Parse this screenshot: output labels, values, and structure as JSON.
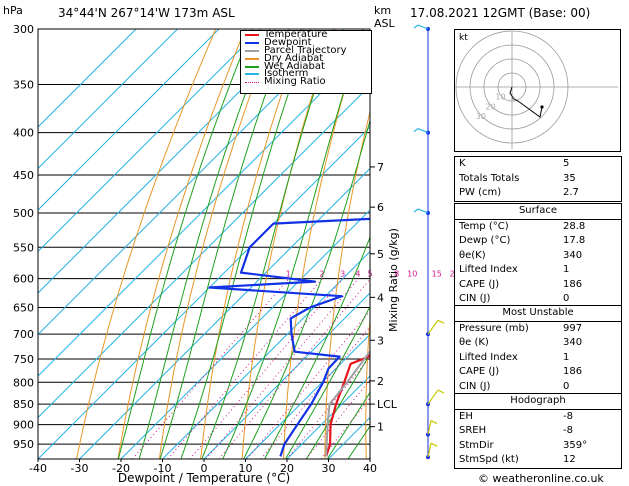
{
  "header": {
    "pressure_unit": "hPa",
    "location": "34°44'N  267°14'W  173m  ASL",
    "height_unit_top": "km",
    "height_unit_bottom": "ASL",
    "datetime": "17.08.2021  12GMT  (Base: 00)"
  },
  "footer": {
    "copyright": "© weatheronline.co.uk"
  },
  "chart_data": {
    "type": "line",
    "subtype": "skew-T log-P diagram",
    "xlabel": "Dewpoint / Temperature (°C)",
    "ylabel_right": "Mixing Ratio (g/kg)",
    "temp_ticks": [
      -40,
      -30,
      -20,
      -10,
      0,
      10,
      20,
      30,
      40
    ],
    "pressure_ticks": [
      300,
      350,
      400,
      450,
      500,
      550,
      600,
      650,
      700,
      750,
      800,
      850,
      900,
      950
    ],
    "pressure_range": [
      300,
      990
    ],
    "height_ticks": [
      {
        "label": "7",
        "p": 440
      },
      {
        "label": "6",
        "p": 492
      },
      {
        "label": "5",
        "p": 560
      },
      {
        "label": "4",
        "p": 632
      },
      {
        "label": "3",
        "p": 712
      },
      {
        "label": "2",
        "p": 797
      },
      {
        "label": "LCL",
        "p": 850
      },
      {
        "label": "1",
        "p": 905
      }
    ],
    "mixing_ratio_labels": [
      "1",
      "2",
      "3",
      "4",
      "5",
      "8",
      "10",
      "15",
      "20",
      "25"
    ],
    "legend": [
      {
        "name": "Temperature",
        "color": "#e8141e",
        "style": "solid"
      },
      {
        "name": "Dewpoint",
        "color": "#1232e6",
        "style": "solid"
      },
      {
        "name": "Parcel Trajectory",
        "color": "#a0a0a0",
        "style": "solid"
      },
      {
        "name": "Dry Adiabat",
        "color": "#e89628",
        "style": "solid"
      },
      {
        "name": "Wet Adiabat",
        "color": "#1ea01e",
        "style": "solid"
      },
      {
        "name": "Isotherm",
        "color": "#28b4e6",
        "style": "solid"
      },
      {
        "name": "Mixing Ratio",
        "color": "#d2148c",
        "style": "dotted"
      }
    ],
    "series": [
      {
        "name": "Temperature",
        "color": "#e8141e",
        "points": [
          [
            983,
            28.8
          ],
          [
            950,
            26.8
          ],
          [
            900,
            22.2
          ],
          [
            850,
            18.6
          ],
          [
            800,
            15.3
          ],
          [
            760,
            12.4
          ],
          [
            745,
            15.0
          ],
          [
            700,
            13.2
          ],
          [
            650,
            10.2
          ],
          [
            620,
            8.0
          ],
          [
            600,
            6.8
          ],
          [
            550,
            1.2
          ],
          [
            500,
            -3.6
          ],
          [
            450,
            -9.6
          ],
          [
            400,
            -17.2
          ],
          [
            350,
            -25.5
          ],
          [
            300,
            -34.8
          ]
        ]
      },
      {
        "name": "Dewpoint",
        "color": "#1232e6",
        "points": [
          [
            983,
            17.8
          ],
          [
            950,
            15.8
          ],
          [
            900,
            14.2
          ],
          [
            850,
            12.6
          ],
          [
            800,
            10.2
          ],
          [
            770,
            8.2
          ],
          [
            745,
            8.0
          ],
          [
            735,
            -4.0
          ],
          [
            700,
            -9.0
          ],
          [
            670,
            -13.0
          ],
          [
            650,
            -11.0
          ],
          [
            630,
            -6.0
          ],
          [
            615,
            -40.0
          ],
          [
            605,
            -16.0
          ],
          [
            590,
            -36.0
          ],
          [
            550,
            -40.0
          ],
          [
            515,
            -40.0
          ],
          [
            505,
            -7.0
          ],
          [
            450,
            -4.0
          ],
          [
            400,
            -9.0
          ],
          [
            350,
            -22.0
          ],
          [
            300,
            -39.0
          ]
        ]
      },
      {
        "name": "Parcel Trajectory",
        "color": "#a0a0a0",
        "points": [
          [
            983,
            28.8
          ],
          [
            900,
            21.5
          ],
          [
            850,
            17.0
          ],
          [
            800,
            16.0
          ],
          [
            700,
            13.0
          ],
          [
            600,
            8.5
          ],
          [
            500,
            1.0
          ],
          [
            400,
            -11.0
          ],
          [
            350,
            -19.0
          ],
          [
            300,
            -29.0
          ]
        ]
      }
    ],
    "wind_barbs": [
      {
        "p": 985,
        "dir": "N",
        "speed_kt": 5
      },
      {
        "p": 925,
        "dir": "N",
        "speed_kt": 10
      },
      {
        "p": 850,
        "dir": "NE",
        "speed_kt": 10
      },
      {
        "p": 700,
        "dir": "NE",
        "speed_kt": 10
      },
      {
        "p": 500,
        "dir": "W",
        "speed_kt": 15
      },
      {
        "p": 400,
        "dir": "W",
        "speed_kt": 15
      },
      {
        "p": 300,
        "dir": "W",
        "speed_kt": 15
      }
    ]
  },
  "hodograph": {
    "unit": "kt",
    "ring_labels": [
      "10",
      "20",
      "30"
    ]
  },
  "indices": [
    {
      "key": "K",
      "value": "5"
    },
    {
      "key": "Totals Totals",
      "value": "35"
    },
    {
      "key": "PW (cm)",
      "value": "2.7"
    }
  ],
  "surface": {
    "title": "Surface",
    "rows": [
      {
        "key": "Temp (°C)",
        "value": "28.8"
      },
      {
        "key": "Dewp (°C)",
        "value": "17.8"
      },
      {
        "key": "θe(K)",
        "value": "340"
      },
      {
        "key": "Lifted Index",
        "value": "1"
      },
      {
        "key": "CAPE (J)",
        "value": "186"
      },
      {
        "key": "CIN (J)",
        "value": "0"
      }
    ]
  },
  "most_unstable": {
    "title": "Most Unstable",
    "rows": [
      {
        "key": "Pressure (mb)",
        "value": "997"
      },
      {
        "key": "θe (K)",
        "value": "340"
      },
      {
        "key": "Lifted Index",
        "value": "1"
      },
      {
        "key": "CAPE (J)",
        "value": "186"
      },
      {
        "key": "CIN (J)",
        "value": "0"
      }
    ]
  },
  "hodograph_table": {
    "title": "Hodograph",
    "rows": [
      {
        "key": "EH",
        "value": "-8"
      },
      {
        "key": "SREH",
        "value": "-8"
      },
      {
        "key": "StmDir",
        "value": "359°"
      },
      {
        "key": "StmSpd (kt)",
        "value": "12"
      }
    ]
  }
}
